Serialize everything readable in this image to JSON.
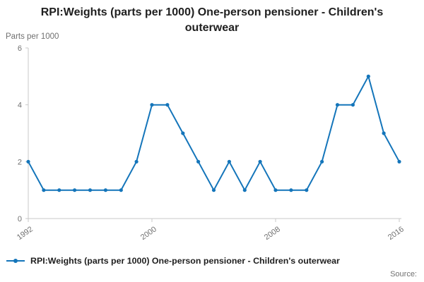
{
  "chart_data": {
    "type": "line",
    "title": "RPI:Weights (parts per 1000) One-person pensioner - Children's outerwear",
    "ylabel": "Parts per 1000",
    "xlabel": "",
    "legend_label": "RPI:Weights (parts per 1000) One-person pensioner - Children's outerwear",
    "x": [
      1992,
      1993,
      1994,
      1995,
      1996,
      1997,
      1998,
      1999,
      2000,
      2001,
      2002,
      2003,
      2004,
      2005,
      2006,
      2007,
      2008,
      2009,
      2010,
      2011,
      2012,
      2013,
      2014,
      2015,
      2016
    ],
    "values": [
      2,
      1,
      1,
      1,
      1,
      1,
      1,
      2,
      4,
      4,
      3,
      2,
      1,
      2,
      1,
      2,
      1,
      1,
      1,
      2,
      4,
      4,
      5,
      3,
      2
    ],
    "xlim": [
      1992,
      2016
    ],
    "ylim": [
      0,
      6
    ],
    "yticks": [
      0,
      2,
      4,
      6
    ],
    "xticks": [
      1992,
      2000,
      2008,
      2016
    ],
    "grid": "off",
    "legend_position": "bottom-left"
  },
  "colors": {
    "accent": "#1475ba",
    "axis": "#c9c9c9",
    "muted": "#707070",
    "title_text": "#202020"
  },
  "footer": {
    "source_label": "Source:"
  }
}
